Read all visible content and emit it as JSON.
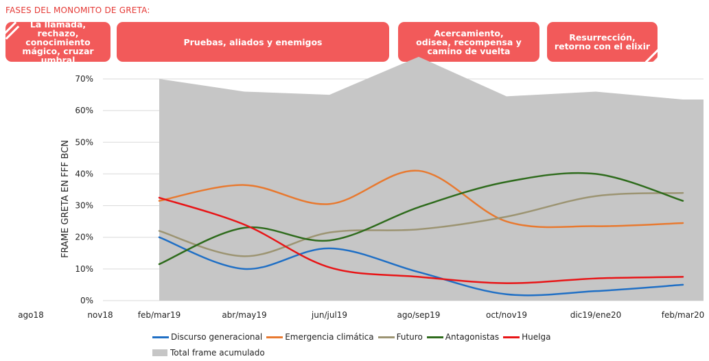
{
  "header": {
    "title": "FASES DEL MONOMITO DE GRETA:"
  },
  "phases": [
    {
      "label": "La llamada,\nrechazo, conocimiento\nmágico, cruzar umbral"
    },
    {
      "label": "Pruebas, aliados y enemigos"
    },
    {
      "label": "Acercamiento,\nodisea, recompensa y\ncamino de vuelta"
    },
    {
      "label": "Resurrección,\nretorno con el elixir"
    }
  ],
  "colors": {
    "phase_fill": "#f25a5a",
    "area": "#c6c6c6",
    "discurso": "#1f6fc5",
    "emergencia": "#e8792f",
    "futuro": "#9c9472",
    "antagonistas": "#2e6b1c",
    "huelga": "#e81416"
  },
  "chart_data": {
    "type": "line",
    "ylabel": "FRAME GRETA EN FFF BCN",
    "ylim": [
      0,
      70
    ],
    "yticks": [
      "0%",
      "10%",
      "20%",
      "30%",
      "40%",
      "50%",
      "60%",
      "70%"
    ],
    "categories": [
      "ago18",
      "nov18",
      "feb/mar19",
      "abr/may19",
      "jun/jul19",
      "ago/sep19",
      "oct/nov19",
      "dic19/ene20",
      "feb/mar20"
    ],
    "series": [
      {
        "name": "Discurso generacional",
        "values": [
          null,
          null,
          20,
          10,
          16.5,
          9,
          2,
          3,
          5
        ]
      },
      {
        "name": "Emergencia climática",
        "values": [
          null,
          null,
          31.5,
          36.5,
          30.5,
          41,
          25,
          23.5,
          24.5
        ]
      },
      {
        "name": "Futuro",
        "values": [
          null,
          null,
          22,
          14,
          21.5,
          22.5,
          26.5,
          33,
          34
        ]
      },
      {
        "name": "Antagonistas",
        "values": [
          null,
          null,
          11.5,
          23,
          19,
          29.5,
          37.5,
          40,
          31.5
        ]
      },
      {
        "name": "Huelga",
        "values": [
          null,
          null,
          32.5,
          24,
          10.5,
          7.5,
          5.5,
          7,
          7.5
        ]
      }
    ],
    "area_series": {
      "name": "Total frame acumulado",
      "values": [
        null,
        null,
        70,
        66,
        65,
        77,
        64.5,
        66,
        63.5
      ]
    },
    "grid": true,
    "legend_position": "bottom"
  }
}
